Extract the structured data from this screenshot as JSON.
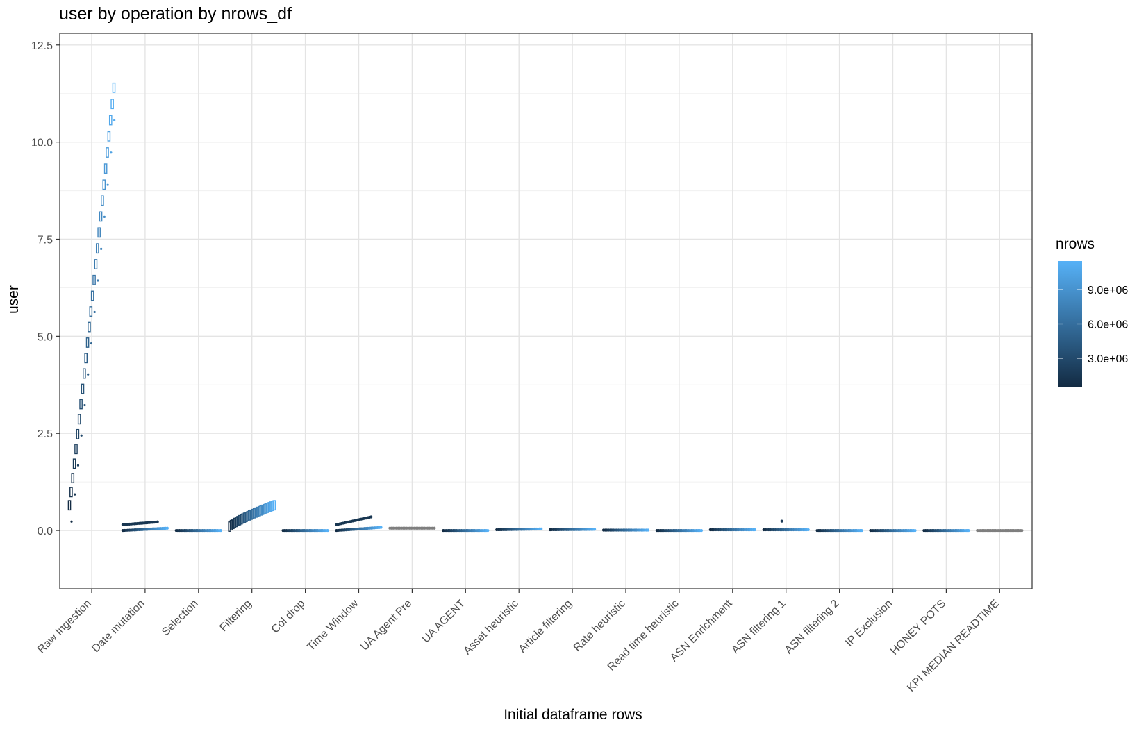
{
  "chart_data": {
    "type": "scatter",
    "title": "user by operation by nrows_df",
    "xlabel": "Initial dataframe rows",
    "ylabel": "user",
    "ylim": [
      -1.5,
      12.8
    ],
    "yticks": [
      0.0,
      2.5,
      5.0,
      7.5,
      10.0,
      12.5
    ],
    "ytick_labels": [
      "0.0",
      "2.5",
      "5.0",
      "7.5",
      "10.0",
      "12.5"
    ],
    "grid": true,
    "legend": {
      "title": "nrows",
      "placement": "right",
      "ticks": [
        3000000,
        6000000,
        9000000
      ],
      "tick_labels": [
        "3.0e+06",
        "6.0e+06",
        "9.0e+06"
      ],
      "range": [
        500000,
        11500000
      ],
      "color_low": "#132b43",
      "color_high": "#56b1f7"
    },
    "na_color": "#7f7f7f",
    "categories": [
      "Raw Ingestion",
      "Date mutation",
      "Selection",
      "Filtering",
      "Col drop",
      "Time Window",
      "UA Agent Pre",
      "UA AGENT",
      "Asset heuristic",
      "Article filtering",
      "Rate heuristic",
      "Read time heuristic",
      "ASN Enrichment",
      "ASN filtering 1",
      "ASN filtering 2",
      "IP Exclusion",
      "HONEY POTS",
      "KPI MEDIAN READTIME"
    ],
    "series": [
      {
        "category": "Raw Ingestion",
        "y_start": 0.65,
        "y_end": 11.4,
        "spread": 0.12
      },
      {
        "category": "Date mutation",
        "y_start": 0.0,
        "y_end": 0.06,
        "spread": 0.01,
        "upper_start": 0.15,
        "upper_end": 0.22
      },
      {
        "category": "Selection",
        "y_start": 0.0,
        "y_end": 0.0,
        "spread": 0.004
      },
      {
        "category": "Filtering",
        "y_start": 0.1,
        "y_end": 0.65,
        "spread": 0.12
      },
      {
        "category": "Col drop",
        "y_start": 0.0,
        "y_end": 0.0,
        "spread": 0.004
      },
      {
        "category": "Time Window",
        "y_start": 0.0,
        "y_end": 0.08,
        "spread": 0.01,
        "upper_start": 0.15,
        "upper_end": 0.35
      },
      {
        "category": "UA Agent Pre",
        "y_start": 0.06,
        "y_end": 0.06,
        "spread": 0.004,
        "na": true
      },
      {
        "category": "UA AGENT",
        "y_start": 0.0,
        "y_end": 0.0,
        "spread": 0.004
      },
      {
        "category": "Asset heuristic",
        "y_start": 0.02,
        "y_end": 0.04,
        "spread": 0.01
      },
      {
        "category": "Article filtering",
        "y_start": 0.02,
        "y_end": 0.03,
        "spread": 0.006
      },
      {
        "category": "Rate heuristic",
        "y_start": 0.01,
        "y_end": 0.01,
        "spread": 0.004
      },
      {
        "category": "Read time heuristic",
        "y_start": 0.0,
        "y_end": 0.0,
        "spread": 0.004
      },
      {
        "category": "ASN Enrichment",
        "y_start": 0.02,
        "y_end": 0.02,
        "spread": 0.004
      },
      {
        "category": "ASN filtering 1",
        "y_start": 0.02,
        "y_end": 0.02,
        "spread": 0.004,
        "outlier": 0.24
      },
      {
        "category": "ASN filtering 2",
        "y_start": 0.0,
        "y_end": 0.0,
        "spread": 0.004
      },
      {
        "category": "IP Exclusion",
        "y_start": 0.0,
        "y_end": 0.0,
        "spread": 0.004
      },
      {
        "category": "HONEY POTS",
        "y_start": 0.0,
        "y_end": 0.0,
        "spread": 0.004
      },
      {
        "category": "KPI MEDIAN READTIME",
        "y_start": 0.0,
        "y_end": 0.0,
        "spread": 0.004,
        "na": true
      }
    ]
  }
}
